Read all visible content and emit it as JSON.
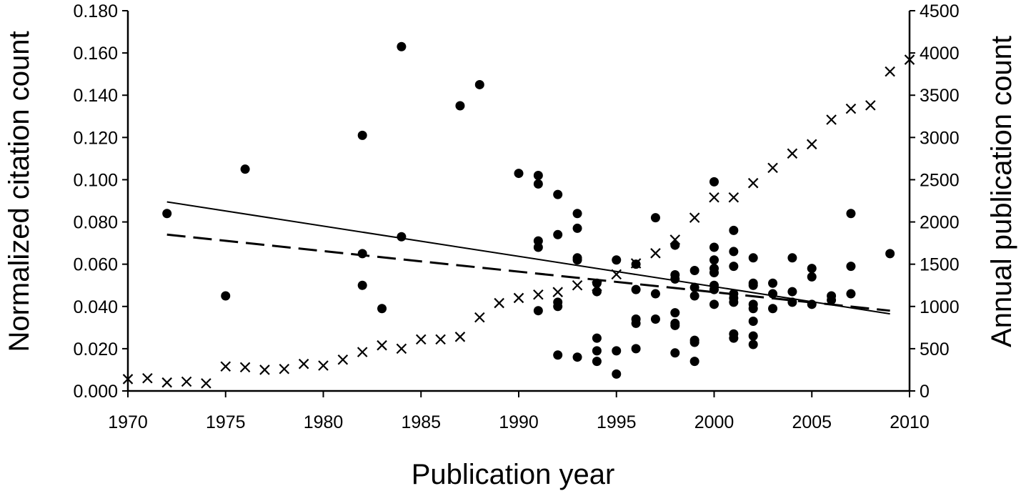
{
  "chart_data": {
    "type": "scatter",
    "xlabel": "Publication year",
    "ylabel_left": "Normalized citation count",
    "ylabel_right": "Annual publication count",
    "xlim": [
      1970,
      2010
    ],
    "ylim_left": [
      0,
      0.18
    ],
    "ylim_right": [
      0,
      4500
    ],
    "x_ticks": [
      "1970",
      "1975",
      "1980",
      "1985",
      "1990",
      "1995",
      "2000",
      "2005",
      "2010"
    ],
    "y_left_ticks": [
      "0.000",
      "0.020",
      "0.040",
      "0.060",
      "0.080",
      "0.100",
      "0.120",
      "0.140",
      "0.160",
      "0.180"
    ],
    "y_right_ticks": [
      "0",
      "500",
      "1000",
      "1500",
      "2000",
      "2500",
      "3000",
      "3500",
      "4000",
      "4500"
    ],
    "grid": false,
    "series": [
      {
        "marker": "filled-circle",
        "axis": "left",
        "points": [
          [
            1972,
            0.084
          ],
          [
            1975,
            0.045
          ],
          [
            1976,
            0.105
          ],
          [
            1982,
            0.121
          ],
          [
            1982,
            0.065
          ],
          [
            1982,
            0.05
          ],
          [
            1983,
            0.039
          ],
          [
            1984,
            0.163
          ],
          [
            1984,
            0.073
          ],
          [
            1987,
            0.135
          ],
          [
            1988,
            0.145
          ],
          [
            1990,
            0.103
          ],
          [
            1991,
            0.102
          ],
          [
            1991,
            0.098
          ],
          [
            1991,
            0.071
          ],
          [
            1991,
            0.068
          ],
          [
            1991,
            0.038
          ],
          [
            1992,
            0.093
          ],
          [
            1992,
            0.074
          ],
          [
            1992,
            0.042
          ],
          [
            1992,
            0.04
          ],
          [
            1992,
            0.017
          ],
          [
            1993,
            0.084
          ],
          [
            1993,
            0.077
          ],
          [
            1993,
            0.063
          ],
          [
            1993,
            0.062
          ],
          [
            1993,
            0.016
          ],
          [
            1994,
            0.051
          ],
          [
            1994,
            0.047
          ],
          [
            1994,
            0.025
          ],
          [
            1994,
            0.019
          ],
          [
            1994,
            0.014
          ],
          [
            1995,
            0.062
          ],
          [
            1995,
            0.019
          ],
          [
            1995,
            0.008
          ],
          [
            1996,
            0.06
          ],
          [
            1996,
            0.048
          ],
          [
            1996,
            0.034
          ],
          [
            1996,
            0.032
          ],
          [
            1996,
            0.02
          ],
          [
            1997,
            0.082
          ],
          [
            1997,
            0.046
          ],
          [
            1997,
            0.034
          ],
          [
            1998,
            0.069
          ],
          [
            1998,
            0.055
          ],
          [
            1998,
            0.053
          ],
          [
            1998,
            0.037
          ],
          [
            1998,
            0.032
          ],
          [
            1998,
            0.031
          ],
          [
            1998,
            0.018
          ],
          [
            1999,
            0.057
          ],
          [
            1999,
            0.049
          ],
          [
            1999,
            0.045
          ],
          [
            1999,
            0.024
          ],
          [
            1999,
            0.023
          ],
          [
            1999,
            0.014
          ],
          [
            2000,
            0.099
          ],
          [
            2000,
            0.068
          ],
          [
            2000,
            0.062
          ],
          [
            2000,
            0.058
          ],
          [
            2000,
            0.056
          ],
          [
            2000,
            0.05
          ],
          [
            2000,
            0.048
          ],
          [
            2000,
            0.041
          ],
          [
            2001,
            0.076
          ],
          [
            2001,
            0.066
          ],
          [
            2001,
            0.059
          ],
          [
            2001,
            0.046
          ],
          [
            2001,
            0.044
          ],
          [
            2001,
            0.042
          ],
          [
            2001,
            0.027
          ],
          [
            2001,
            0.025
          ],
          [
            2002,
            0.063
          ],
          [
            2002,
            0.051
          ],
          [
            2002,
            0.05
          ],
          [
            2002,
            0.041
          ],
          [
            2002,
            0.039
          ],
          [
            2002,
            0.033
          ],
          [
            2002,
            0.026
          ],
          [
            2002,
            0.022
          ],
          [
            2003,
            0.051
          ],
          [
            2003,
            0.046
          ],
          [
            2003,
            0.039
          ],
          [
            2004,
            0.063
          ],
          [
            2004,
            0.047
          ],
          [
            2004,
            0.042
          ],
          [
            2005,
            0.058
          ],
          [
            2005,
            0.054
          ],
          [
            2005,
            0.041
          ],
          [
            2006,
            0.045
          ],
          [
            2006,
            0.043
          ],
          [
            2007,
            0.084
          ],
          [
            2007,
            0.059
          ],
          [
            2007,
            0.046
          ],
          [
            2009,
            0.065
          ]
        ]
      },
      {
        "marker": "x",
        "axis": "right",
        "points": [
          [
            1970,
            140
          ],
          [
            1971,
            150
          ],
          [
            1972,
            100
          ],
          [
            1973,
            110
          ],
          [
            1974,
            90
          ],
          [
            1975,
            290
          ],
          [
            1976,
            280
          ],
          [
            1977,
            250
          ],
          [
            1978,
            260
          ],
          [
            1979,
            320
          ],
          [
            1980,
            300
          ],
          [
            1981,
            370
          ],
          [
            1982,
            460
          ],
          [
            1983,
            540
          ],
          [
            1984,
            500
          ],
          [
            1985,
            610
          ],
          [
            1986,
            610
          ],
          [
            1987,
            640
          ],
          [
            1988,
            870
          ],
          [
            1989,
            1040
          ],
          [
            1990,
            1100
          ],
          [
            1991,
            1140
          ],
          [
            1992,
            1170
          ],
          [
            1993,
            1250
          ],
          [
            1994,
            1240
          ],
          [
            1995,
            1380
          ],
          [
            1996,
            1510
          ],
          [
            1997,
            1630
          ],
          [
            1998,
            1790
          ],
          [
            1999,
            2050
          ],
          [
            2000,
            2290
          ],
          [
            2001,
            2290
          ],
          [
            2002,
            2460
          ],
          [
            2003,
            2640
          ],
          [
            2004,
            2810
          ],
          [
            2005,
            2920
          ],
          [
            2006,
            3210
          ],
          [
            2007,
            3340
          ],
          [
            2008,
            3380
          ],
          [
            2009,
            3780
          ],
          [
            2010,
            3920
          ]
        ]
      }
    ],
    "trendlines": [
      {
        "style": "solid",
        "axis": "left",
        "from": [
          1972,
          0.0895
        ],
        "to": [
          2009,
          0.0365
        ]
      },
      {
        "style": "dashed",
        "axis": "left",
        "from": [
          1972,
          0.074
        ],
        "to": [
          2009,
          0.038
        ]
      }
    ]
  }
}
